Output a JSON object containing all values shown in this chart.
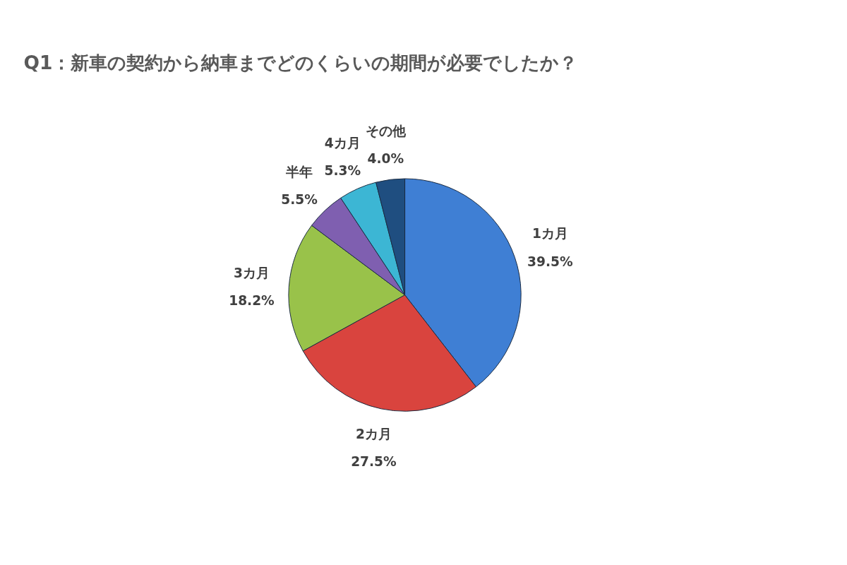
{
  "chart_data": {
    "type": "pie",
    "title": "Q1：新車の契約から納車までどのくらいの期間が必要でしたか？",
    "categories": [
      "1カ月",
      "2カ月",
      "3カ月",
      "半年",
      "4カ月",
      "その他"
    ],
    "values": [
      39.5,
      27.5,
      18.2,
      5.5,
      5.3,
      4.0
    ],
    "colors": [
      "#3f7fd4",
      "#d9443e",
      "#99c24a",
      "#7f5fb0",
      "#3cb6d4",
      "#1f4e80"
    ],
    "value_labels": [
      "39.5%",
      "27.5%",
      "18.2%",
      "5.5%",
      "5.3%",
      "4.0%"
    ]
  }
}
